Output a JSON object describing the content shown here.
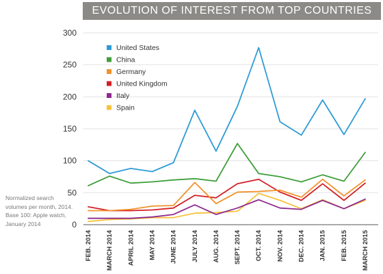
{
  "note_lines": [
    "Normalized search",
    "volumes per month, 2014.",
    "Base 100: Apple watch,",
    "January 2014"
  ],
  "chart_data": {
    "type": "line",
    "title": "EVOLUTION OF INTEREST FROM TOP COUNTRIES",
    "xlabel": "",
    "ylabel": "",
    "ylim": [
      0,
      300
    ],
    "yticks": [
      0,
      50,
      100,
      150,
      200,
      250,
      300
    ],
    "grid": true,
    "legend_position": "top-left",
    "categories": [
      "FEB. 2014",
      "MARCH 2014",
      "APRIL 2014",
      "MAY 2014",
      "JUNE 2014",
      "JULY 2014",
      "AUG. 2014",
      "SEPT. 2014",
      "OCT. 2014",
      "NOV. 2014",
      "DEC. 2014",
      "JAN. 2015",
      "FEB. 2015",
      "MARCH 2015"
    ],
    "series": [
      {
        "name": "United States",
        "color": "#2e9bd6",
        "values": [
          100,
          80,
          88,
          83,
          97,
          179,
          115,
          185,
          277,
          161,
          140,
          195,
          141,
          197
        ]
      },
      {
        "name": "China",
        "color": "#3f9e3a",
        "values": [
          61,
          76,
          65,
          67,
          70,
          72,
          68,
          127,
          80,
          75,
          67,
          78,
          68,
          113
        ]
      },
      {
        "name": "Germany",
        "color": "#f2922b",
        "values": [
          22,
          22,
          24,
          29,
          30,
          66,
          33,
          51,
          52,
          54,
          43,
          71,
          45,
          70
        ]
      },
      {
        "name": "United Kingdom",
        "color": "#d21f26",
        "values": [
          28,
          22,
          22,
          23,
          26,
          46,
          42,
          64,
          71,
          51,
          38,
          64,
          38,
          65
        ]
      },
      {
        "name": "Italy",
        "color": "#8e2a8e",
        "values": [
          10,
          10,
          10,
          12,
          16,
          31,
          16,
          26,
          39,
          26,
          24,
          38,
          25,
          40
        ]
      },
      {
        "name": "Spain",
        "color": "#f6c23c",
        "values": [
          5,
          8,
          9,
          11,
          11,
          18,
          19,
          21,
          49,
          38,
          25,
          39,
          25,
          38
        ]
      }
    ]
  }
}
